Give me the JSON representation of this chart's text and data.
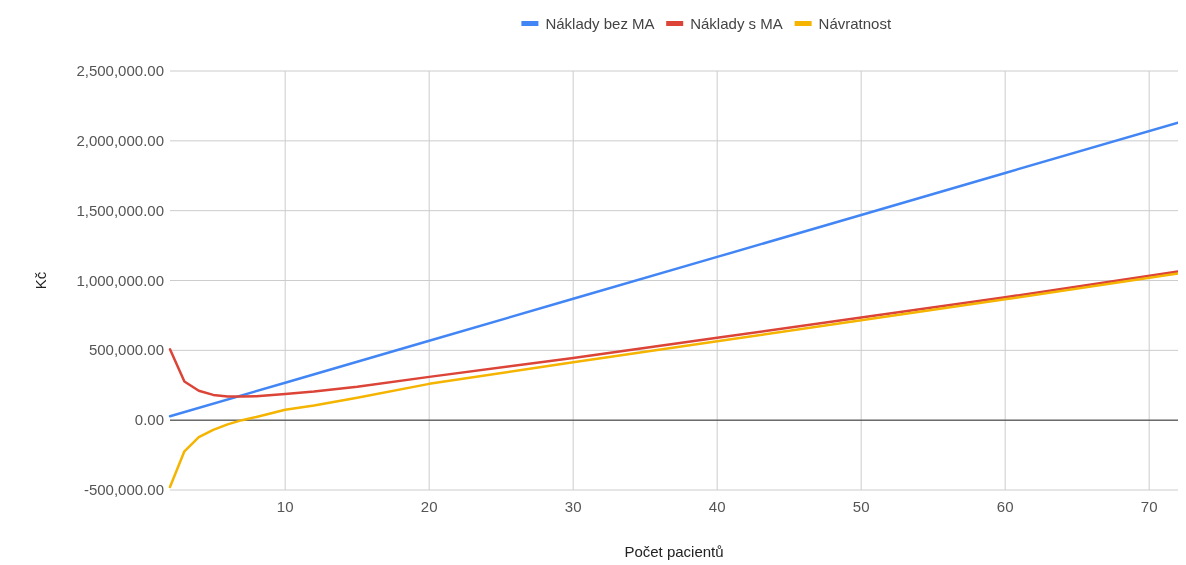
{
  "chart_data": {
    "type": "line",
    "xlabel": "Počet pacientů",
    "ylabel": "Kč",
    "xlim": [
      2,
      72
    ],
    "xticks": [
      10,
      20,
      30,
      40,
      50,
      60,
      70
    ],
    "ylim": [
      -500000,
      2500000
    ],
    "yticks": [
      {
        "value": -500000,
        "label": "-500,000.00"
      },
      {
        "value": 0,
        "label": "0.00"
      },
      {
        "value": 500000,
        "label": "500,000.00"
      },
      {
        "value": 1000000,
        "label": "1,000,000.00"
      },
      {
        "value": 1500000,
        "label": "1,500,000.00"
      },
      {
        "value": 2000000,
        "label": "2,000,000.00"
      },
      {
        "value": 2500000,
        "label": "2,500,000.00"
      }
    ],
    "grid": true,
    "legend": "top",
    "marker": "none",
    "line_style": "solid",
    "ref_lines": [
      {
        "axis": "y",
        "value": 0,
        "color": "#333333"
      }
    ],
    "series": [
      {
        "name": "Náklady bez MA",
        "color": "#4285f4",
        "x": [
          2,
          10,
          20,
          30,
          40,
          50,
          60,
          72
        ],
        "values": [
          28000,
          268000,
          569000,
          869000,
          1169000,
          1469000,
          1770000,
          2130000
        ]
      },
      {
        "name": "Náklady s MA",
        "color": "#db4437",
        "x": [
          2,
          3,
          4,
          5,
          6,
          7,
          8,
          10,
          12,
          15,
          20,
          30,
          40,
          50,
          60,
          72
        ],
        "values": [
          507000,
          277000,
          211000,
          181000,
          169000,
          169000,
          172000,
          188000,
          205000,
          240000,
          310000,
          445000,
          590000,
          735000,
          880000,
          1065000
        ]
      },
      {
        "name": "Návratnost",
        "color": "#f4b400",
        "x": [
          2,
          3,
          4,
          5,
          6,
          7,
          8,
          10,
          12,
          15,
          20,
          30,
          40,
          50,
          60,
          72
        ],
        "values": [
          -479000,
          -223000,
          -122000,
          -70000,
          -30000,
          0,
          23000,
          75000,
          105000,
          160000,
          260000,
          415000,
          565000,
          715000,
          865000,
          1050000
        ]
      }
    ]
  }
}
